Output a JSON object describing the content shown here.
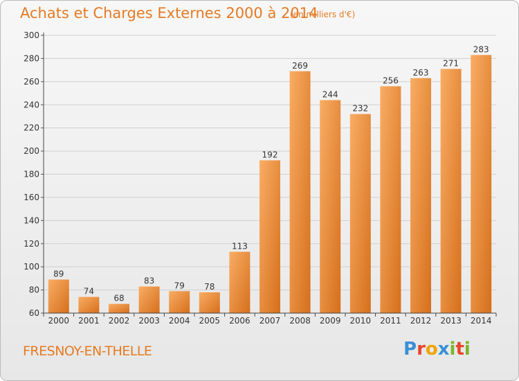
{
  "title": "Achats et Charges Externes 2000 à 2014",
  "unit_note": "(en milliers d'€)",
  "commune": "FRESNOY-EN-THELLE",
  "logo": {
    "text": "Proxiti",
    "letters": [
      "P",
      "r",
      "o",
      "x",
      "i",
      "t",
      "i"
    ],
    "colors": [
      "#3a8fd6",
      "#e8452c",
      "#f0a500",
      "#3a8fd6",
      "#7ab62a",
      "#e8452c",
      "#7ab62a"
    ]
  },
  "colors": {
    "accent": "#e57a22",
    "bar_light": "#f7a65a",
    "bar_dark": "#d9741f",
    "grid": "#cfcfcf"
  },
  "chart_data": {
    "type": "bar",
    "categories": [
      "2000",
      "2001",
      "2002",
      "2003",
      "2004",
      "2005",
      "2006",
      "2007",
      "2008",
      "2009",
      "2010",
      "2011",
      "2012",
      "2013",
      "2014"
    ],
    "values": [
      89,
      74,
      68,
      83,
      79,
      78,
      113,
      192,
      269,
      244,
      232,
      256,
      263,
      271,
      283
    ],
    "title": "Achats et Charges Externes 2000 à 2014",
    "ylim": [
      60,
      300
    ],
    "yticks": [
      60,
      80,
      100,
      120,
      140,
      160,
      180,
      200,
      220,
      240,
      260,
      280,
      300
    ],
    "grid": true,
    "data_labels": true
  }
}
